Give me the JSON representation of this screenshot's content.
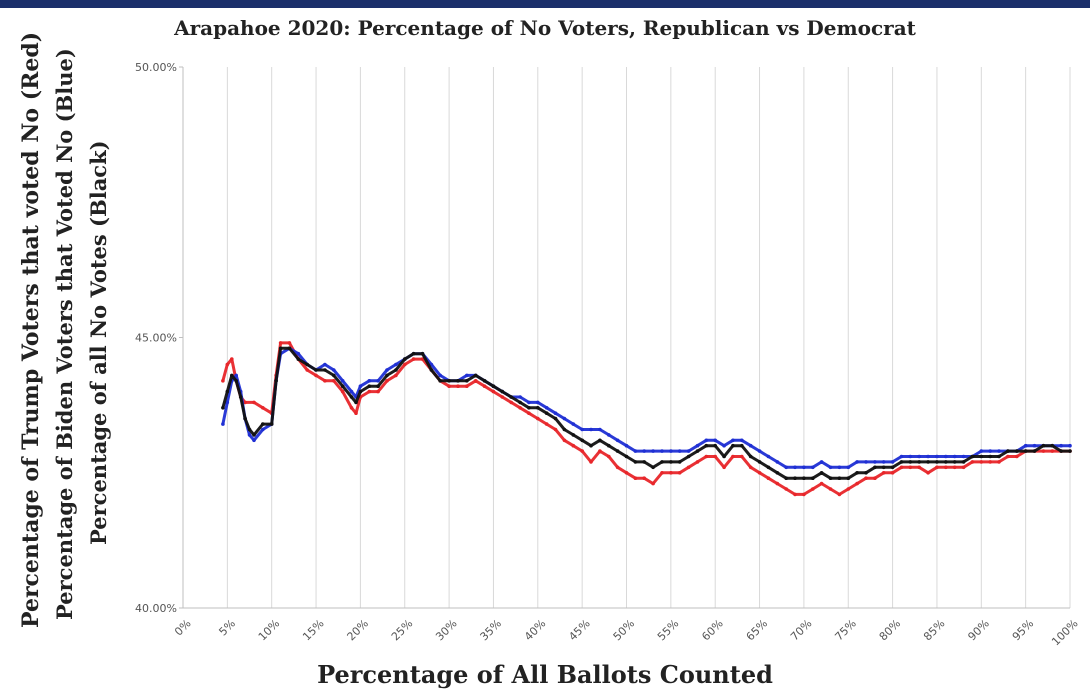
{
  "chart_data": {
    "type": "scatter",
    "title": "Arapahoe 2020: Percentage of No Voters, Republican vs Democrat",
    "xlabel": "Percentage of All Ballots Counted",
    "ylabel_lines": [
      "Percentage of Trump Voters that voted No (Red)",
      "Percentage of Biden Voters that Voted No (Blue)",
      "Percentage of all No Votes (Black)"
    ],
    "xlim": [
      0,
      100
    ],
    "ylim": [
      40,
      50
    ],
    "x_ticks": [
      "0%",
      "5%",
      "10%",
      "15%",
      "20%",
      "25%",
      "30%",
      "35%",
      "40%",
      "45%",
      "50%",
      "55%",
      "60%",
      "65%",
      "70%",
      "75%",
      "80%",
      "85%",
      "90%",
      "95%",
      "100%"
    ],
    "y_ticks": [
      {
        "value": 40,
        "label": "40.00%"
      },
      {
        "value": 45,
        "label": "45.00%"
      },
      {
        "value": 50,
        "label": "50.00%"
      }
    ],
    "grid": "vertical",
    "series": [
      {
        "name": "Trump Voters No (Red)",
        "color": "#e8262a",
        "points": [
          [
            4.5,
            44.2
          ],
          [
            5,
            44.5
          ],
          [
            5.5,
            44.6
          ],
          [
            6,
            44.2
          ],
          [
            6.5,
            43.9
          ],
          [
            7,
            43.8
          ],
          [
            8,
            43.8
          ],
          [
            9,
            43.7
          ],
          [
            10,
            43.6
          ],
          [
            10.5,
            44.3
          ],
          [
            11,
            44.9
          ],
          [
            12,
            44.9
          ],
          [
            13,
            44.6
          ],
          [
            14,
            44.4
          ],
          [
            15,
            44.3
          ],
          [
            16,
            44.2
          ],
          [
            17,
            44.2
          ],
          [
            18,
            44.0
          ],
          [
            19,
            43.7
          ],
          [
            19.5,
            43.6
          ],
          [
            20,
            43.9
          ],
          [
            21,
            44.0
          ],
          [
            22,
            44.0
          ],
          [
            23,
            44.2
          ],
          [
            24,
            44.3
          ],
          [
            25,
            44.5
          ],
          [
            26,
            44.6
          ],
          [
            27,
            44.6
          ],
          [
            28,
            44.4
          ],
          [
            29,
            44.2
          ],
          [
            30,
            44.1
          ],
          [
            31,
            44.1
          ],
          [
            32,
            44.1
          ],
          [
            33,
            44.2
          ],
          [
            34,
            44.1
          ],
          [
            35,
            44.0
          ],
          [
            36,
            43.9
          ],
          [
            37,
            43.8
          ],
          [
            38,
            43.7
          ],
          [
            39,
            43.6
          ],
          [
            40,
            43.5
          ],
          [
            41,
            43.4
          ],
          [
            42,
            43.3
          ],
          [
            43,
            43.1
          ],
          [
            44,
            43.0
          ],
          [
            45,
            42.9
          ],
          [
            46,
            42.7
          ],
          [
            47,
            42.9
          ],
          [
            48,
            42.8
          ],
          [
            49,
            42.6
          ],
          [
            50,
            42.5
          ],
          [
            51,
            42.4
          ],
          [
            52,
            42.4
          ],
          [
            53,
            42.3
          ],
          [
            54,
            42.5
          ],
          [
            55,
            42.5
          ],
          [
            56,
            42.5
          ],
          [
            57,
            42.6
          ],
          [
            58,
            42.7
          ],
          [
            59,
            42.8
          ],
          [
            60,
            42.8
          ],
          [
            61,
            42.6
          ],
          [
            62,
            42.8
          ],
          [
            63,
            42.8
          ],
          [
            64,
            42.6
          ],
          [
            65,
            42.5
          ],
          [
            66,
            42.4
          ],
          [
            67,
            42.3
          ],
          [
            68,
            42.2
          ],
          [
            69,
            42.1
          ],
          [
            70,
            42.1
          ],
          [
            71,
            42.2
          ],
          [
            72,
            42.3
          ],
          [
            73,
            42.2
          ],
          [
            74,
            42.1
          ],
          [
            75,
            42.2
          ],
          [
            76,
            42.3
          ],
          [
            77,
            42.4
          ],
          [
            78,
            42.4
          ],
          [
            79,
            42.5
          ],
          [
            80,
            42.5
          ],
          [
            81,
            42.6
          ],
          [
            82,
            42.6
          ],
          [
            83,
            42.6
          ],
          [
            84,
            42.5
          ],
          [
            85,
            42.6
          ],
          [
            86,
            42.6
          ],
          [
            87,
            42.6
          ],
          [
            88,
            42.6
          ],
          [
            89,
            42.7
          ],
          [
            90,
            42.7
          ],
          [
            91,
            42.7
          ],
          [
            92,
            42.7
          ],
          [
            93,
            42.8
          ],
          [
            94,
            42.8
          ],
          [
            95,
            42.9
          ],
          [
            96,
            42.9
          ],
          [
            97,
            42.9
          ],
          [
            98,
            42.9
          ],
          [
            99,
            42.9
          ],
          [
            100,
            42.9
          ]
        ]
      },
      {
        "name": "Biden Voters No (Blue)",
        "color": "#1f2fd4",
        "points": [
          [
            4.5,
            43.4
          ],
          [
            5,
            43.8
          ],
          [
            5.5,
            44.2
          ],
          [
            6,
            44.3
          ],
          [
            6.5,
            44.0
          ],
          [
            7,
            43.5
          ],
          [
            7.5,
            43.2
          ],
          [
            8,
            43.1
          ],
          [
            9,
            43.3
          ],
          [
            10,
            43.4
          ],
          [
            10.5,
            44.2
          ],
          [
            11,
            44.7
          ],
          [
            12,
            44.8
          ],
          [
            13,
            44.7
          ],
          [
            14,
            44.5
          ],
          [
            15,
            44.4
          ],
          [
            16,
            44.5
          ],
          [
            17,
            44.4
          ],
          [
            18,
            44.2
          ],
          [
            19,
            44.0
          ],
          [
            19.5,
            43.9
          ],
          [
            20,
            44.1
          ],
          [
            21,
            44.2
          ],
          [
            22,
            44.2
          ],
          [
            23,
            44.4
          ],
          [
            24,
            44.5
          ],
          [
            25,
            44.6
          ],
          [
            26,
            44.7
          ],
          [
            27,
            44.7
          ],
          [
            28,
            44.5
          ],
          [
            29,
            44.3
          ],
          [
            30,
            44.2
          ],
          [
            31,
            44.2
          ],
          [
            32,
            44.3
          ],
          [
            33,
            44.3
          ],
          [
            34,
            44.2
          ],
          [
            35,
            44.1
          ],
          [
            36,
            44.0
          ],
          [
            37,
            43.9
          ],
          [
            38,
            43.9
          ],
          [
            39,
            43.8
          ],
          [
            40,
            43.8
          ],
          [
            41,
            43.7
          ],
          [
            42,
            43.6
          ],
          [
            43,
            43.5
          ],
          [
            44,
            43.4
          ],
          [
            45,
            43.3
          ],
          [
            46,
            43.3
          ],
          [
            47,
            43.3
          ],
          [
            48,
            43.2
          ],
          [
            49,
            43.1
          ],
          [
            50,
            43.0
          ],
          [
            51,
            42.9
          ],
          [
            52,
            42.9
          ],
          [
            53,
            42.9
          ],
          [
            54,
            42.9
          ],
          [
            55,
            42.9
          ],
          [
            56,
            42.9
          ],
          [
            57,
            42.9
          ],
          [
            58,
            43.0
          ],
          [
            59,
            43.1
          ],
          [
            60,
            43.1
          ],
          [
            61,
            43.0
          ],
          [
            62,
            43.1
          ],
          [
            63,
            43.1
          ],
          [
            64,
            43.0
          ],
          [
            65,
            42.9
          ],
          [
            66,
            42.8
          ],
          [
            67,
            42.7
          ],
          [
            68,
            42.6
          ],
          [
            69,
            42.6
          ],
          [
            70,
            42.6
          ],
          [
            71,
            42.6
          ],
          [
            72,
            42.7
          ],
          [
            73,
            42.6
          ],
          [
            74,
            42.6
          ],
          [
            75,
            42.6
          ],
          [
            76,
            42.7
          ],
          [
            77,
            42.7
          ],
          [
            78,
            42.7
          ],
          [
            79,
            42.7
          ],
          [
            80,
            42.7
          ],
          [
            81,
            42.8
          ],
          [
            82,
            42.8
          ],
          [
            83,
            42.8
          ],
          [
            84,
            42.8
          ],
          [
            85,
            42.8
          ],
          [
            86,
            42.8
          ],
          [
            87,
            42.8
          ],
          [
            88,
            42.8
          ],
          [
            89,
            42.8
          ],
          [
            90,
            42.9
          ],
          [
            91,
            42.9
          ],
          [
            92,
            42.9
          ],
          [
            93,
            42.9
          ],
          [
            94,
            42.9
          ],
          [
            95,
            43.0
          ],
          [
            96,
            43.0
          ],
          [
            97,
            43.0
          ],
          [
            98,
            43.0
          ],
          [
            99,
            43.0
          ],
          [
            100,
            43.0
          ]
        ]
      },
      {
        "name": "All No Votes (Black)",
        "color": "#111111",
        "points": [
          [
            4.5,
            43.7
          ],
          [
            5,
            44.0
          ],
          [
            5.5,
            44.3
          ],
          [
            6,
            44.2
          ],
          [
            6.5,
            43.9
          ],
          [
            7,
            43.5
          ],
          [
            7.5,
            43.3
          ],
          [
            8,
            43.2
          ],
          [
            9,
            43.4
          ],
          [
            10,
            43.4
          ],
          [
            10.5,
            44.2
          ],
          [
            11,
            44.8
          ],
          [
            12,
            44.8
          ],
          [
            13,
            44.6
          ],
          [
            14,
            44.5
          ],
          [
            15,
            44.4
          ],
          [
            16,
            44.4
          ],
          [
            17,
            44.3
          ],
          [
            18,
            44.1
          ],
          [
            19,
            43.9
          ],
          [
            19.5,
            43.8
          ],
          [
            20,
            44.0
          ],
          [
            21,
            44.1
          ],
          [
            22,
            44.1
          ],
          [
            23,
            44.3
          ],
          [
            24,
            44.4
          ],
          [
            25,
            44.6
          ],
          [
            26,
            44.7
          ],
          [
            27,
            44.7
          ],
          [
            28,
            44.4
          ],
          [
            29,
            44.2
          ],
          [
            30,
            44.2
          ],
          [
            31,
            44.2
          ],
          [
            32,
            44.2
          ],
          [
            33,
            44.3
          ],
          [
            34,
            44.2
          ],
          [
            35,
            44.1
          ],
          [
            36,
            44.0
          ],
          [
            37,
            43.9
          ],
          [
            38,
            43.8
          ],
          [
            39,
            43.7
          ],
          [
            40,
            43.7
          ],
          [
            41,
            43.6
          ],
          [
            42,
            43.5
          ],
          [
            43,
            43.3
          ],
          [
            44,
            43.2
          ],
          [
            45,
            43.1
          ],
          [
            46,
            43.0
          ],
          [
            47,
            43.1
          ],
          [
            48,
            43.0
          ],
          [
            49,
            42.9
          ],
          [
            50,
            42.8
          ],
          [
            51,
            42.7
          ],
          [
            52,
            42.7
          ],
          [
            53,
            42.6
          ],
          [
            54,
            42.7
          ],
          [
            55,
            42.7
          ],
          [
            56,
            42.7
          ],
          [
            57,
            42.8
          ],
          [
            58,
            42.9
          ],
          [
            59,
            43.0
          ],
          [
            60,
            43.0
          ],
          [
            61,
            42.8
          ],
          [
            62,
            43.0
          ],
          [
            63,
            43.0
          ],
          [
            64,
            42.8
          ],
          [
            65,
            42.7
          ],
          [
            66,
            42.6
          ],
          [
            67,
            42.5
          ],
          [
            68,
            42.4
          ],
          [
            69,
            42.4
          ],
          [
            70,
            42.4
          ],
          [
            71,
            42.4
          ],
          [
            72,
            42.5
          ],
          [
            73,
            42.4
          ],
          [
            74,
            42.4
          ],
          [
            75,
            42.4
          ],
          [
            76,
            42.5
          ],
          [
            77,
            42.5
          ],
          [
            78,
            42.6
          ],
          [
            79,
            42.6
          ],
          [
            80,
            42.6
          ],
          [
            81,
            42.7
          ],
          [
            82,
            42.7
          ],
          [
            83,
            42.7
          ],
          [
            84,
            42.7
          ],
          [
            85,
            42.7
          ],
          [
            86,
            42.7
          ],
          [
            87,
            42.7
          ],
          [
            88,
            42.7
          ],
          [
            89,
            42.8
          ],
          [
            90,
            42.8
          ],
          [
            91,
            42.8
          ],
          [
            92,
            42.8
          ],
          [
            93,
            42.9
          ],
          [
            94,
            42.9
          ],
          [
            95,
            42.9
          ],
          [
            96,
            42.9
          ],
          [
            97,
            43.0
          ],
          [
            98,
            43.0
          ],
          [
            99,
            42.9
          ],
          [
            100,
            42.9
          ]
        ]
      }
    ]
  }
}
